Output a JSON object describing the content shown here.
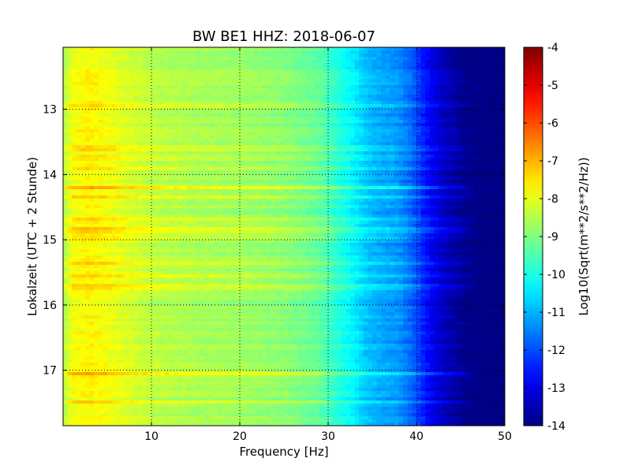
{
  "chart_data": {
    "type": "heatmap",
    "title": "BW BE1 HHZ: 2018-06-07",
    "xlabel": "Frequency [Hz]",
    "ylabel": "Lokalzeit (UTC + 2 Stunde)",
    "colorbar_label": "Log10(Sqrt(m**2/s**2/Hz))",
    "colormap": "jet",
    "xlim": [
      0,
      50
    ],
    "ylim": [
      12.05,
      17.85
    ],
    "y_inverted": true,
    "x_ticks": [
      "10",
      "20",
      "30",
      "40",
      "50"
    ],
    "x_tick_values": [
      10,
      20,
      30,
      40,
      50
    ],
    "y_ticks": [
      "13",
      "14",
      "15",
      "16",
      "17"
    ],
    "y_tick_values": [
      13,
      14,
      15,
      16,
      17
    ],
    "color_range": [
      -14,
      -4
    ],
    "colorbar_ticks": [
      "-4",
      "-5",
      "-6",
      "-7",
      "-8",
      "-9",
      "-10",
      "-11",
      "-12",
      "-13",
      "-14"
    ],
    "colorbar_tick_values": [
      -4,
      -5,
      -6,
      -7,
      -8,
      -9,
      -10,
      -11,
      -12,
      -13,
      -14
    ],
    "grid": true,
    "spectrum_profile": {
      "frequency_hz": [
        0,
        1,
        3,
        6,
        10,
        15,
        20,
        25,
        29,
        31,
        33,
        34.5,
        36,
        38,
        39.5,
        41,
        42.5,
        44,
        45.5,
        50
      ],
      "log10_amplitude": [
        -8.6,
        -7.9,
        -7.7,
        -8.0,
        -8.4,
        -8.6,
        -8.7,
        -8.9,
        -9.3,
        -9.9,
        -10.4,
        -10.9,
        -11.1,
        -11.3,
        -11.8,
        -12.6,
        -13.2,
        -13.6,
        -13.9,
        -14.0
      ]
    },
    "noise_bands": [
      {
        "time": 13.6,
        "offset": 0.9
      },
      {
        "time": 13.75,
        "offset": 0.5
      },
      {
        "time": 13.9,
        "offset": 0.6
      },
      {
        "time": 14.2,
        "offset": 1.0
      },
      {
        "time": 14.35,
        "offset": 0.7
      },
      {
        "time": 14.7,
        "offset": 0.6
      },
      {
        "time": 14.85,
        "offset": 1.1
      },
      {
        "time": 14.95,
        "offset": 0.5
      },
      {
        "time": 15.35,
        "offset": 0.6
      },
      {
        "time": 15.55,
        "offset": 0.5
      },
      {
        "time": 15.72,
        "offset": 0.7
      },
      {
        "time": 17.05,
        "offset": 0.8
      },
      {
        "time": 17.5,
        "offset": 0.5
      },
      {
        "time": 12.95,
        "offset": 0.5
      }
    ]
  }
}
